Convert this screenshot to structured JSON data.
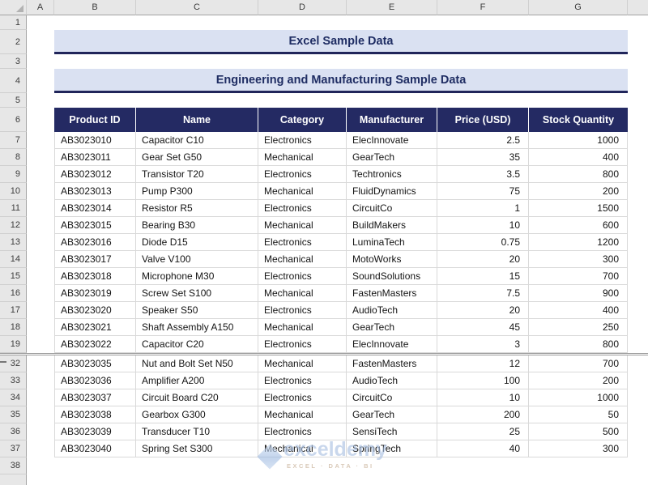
{
  "sheet": {
    "column_letters": [
      "A",
      "B",
      "C",
      "D",
      "E",
      "F",
      "G"
    ],
    "visible_row_numbers": [
      1,
      2,
      3,
      4,
      5,
      6,
      7,
      8,
      9,
      10,
      11,
      12,
      13,
      14,
      15,
      16,
      17,
      18,
      19,
      32,
      33,
      34,
      35,
      36,
      37,
      38
    ]
  },
  "titles": {
    "main": "Excel Sample Data",
    "subtitle": "Engineering and Manufacturing Sample Data"
  },
  "table": {
    "headers": [
      "Product ID",
      "Name",
      "Category",
      "Manufacturer",
      "Price (USD)",
      "Stock Quantity"
    ],
    "rows": [
      {
        "row": 7,
        "product_id": "AB3023010",
        "name": "Capacitor C10",
        "category": "Electronics",
        "manufacturer": "ElecInnovate",
        "price": "2.5",
        "stock": "1000"
      },
      {
        "row": 8,
        "product_id": "AB3023011",
        "name": "Gear Set G50",
        "category": "Mechanical",
        "manufacturer": "GearTech",
        "price": "35",
        "stock": "400"
      },
      {
        "row": 9,
        "product_id": "AB3023012",
        "name": "Transistor T20",
        "category": "Electronics",
        "manufacturer": "Techtronics",
        "price": "3.5",
        "stock": "800"
      },
      {
        "row": 10,
        "product_id": "AB3023013",
        "name": "Pump P300",
        "category": "Mechanical",
        "manufacturer": "FluidDynamics",
        "price": "75",
        "stock": "200"
      },
      {
        "row": 11,
        "product_id": "AB3023014",
        "name": "Resistor R5",
        "category": "Electronics",
        "manufacturer": "CircuitCo",
        "price": "1",
        "stock": "1500"
      },
      {
        "row": 12,
        "product_id": "AB3023015",
        "name": "Bearing B30",
        "category": "Mechanical",
        "manufacturer": "BuildMakers",
        "price": "10",
        "stock": "600"
      },
      {
        "row": 13,
        "product_id": "AB3023016",
        "name": "Diode D15",
        "category": "Electronics",
        "manufacturer": "LuminaTech",
        "price": "0.75",
        "stock": "1200"
      },
      {
        "row": 14,
        "product_id": "AB3023017",
        "name": "Valve V100",
        "category": "Mechanical",
        "manufacturer": "MotoWorks",
        "price": "20",
        "stock": "300"
      },
      {
        "row": 15,
        "product_id": "AB3023018",
        "name": "Microphone M30",
        "category": "Electronics",
        "manufacturer": "SoundSolutions",
        "price": "15",
        "stock": "700"
      },
      {
        "row": 16,
        "product_id": "AB3023019",
        "name": "Screw Set S100",
        "category": "Mechanical",
        "manufacturer": "FastenMasters",
        "price": "7.5",
        "stock": "900"
      },
      {
        "row": 17,
        "product_id": "AB3023020",
        "name": "Speaker S50",
        "category": "Electronics",
        "manufacturer": "AudioTech",
        "price": "20",
        "stock": "400"
      },
      {
        "row": 18,
        "product_id": "AB3023021",
        "name": "Shaft Assembly A150",
        "category": "Mechanical",
        "manufacturer": "GearTech",
        "price": "45",
        "stock": "250"
      },
      {
        "row": 19,
        "product_id": "AB3023022",
        "name": "Capacitor C20",
        "category": "Electronics",
        "manufacturer": "ElecInnovate",
        "price": "3",
        "stock": "800"
      },
      {
        "row": 32,
        "product_id": "AB3023035",
        "name": "Nut and Bolt Set N50",
        "category": "Mechanical",
        "manufacturer": "FastenMasters",
        "price": "12",
        "stock": "700"
      },
      {
        "row": 33,
        "product_id": "AB3023036",
        "name": "Amplifier A200",
        "category": "Electronics",
        "manufacturer": "AudioTech",
        "price": "100",
        "stock": "200"
      },
      {
        "row": 34,
        "product_id": "AB3023037",
        "name": "Circuit Board C20",
        "category": "Electronics",
        "manufacturer": "CircuitCo",
        "price": "10",
        "stock": "1000"
      },
      {
        "row": 35,
        "product_id": "AB3023038",
        "name": "Gearbox G300",
        "category": "Mechanical",
        "manufacturer": "GearTech",
        "price": "200",
        "stock": "50"
      },
      {
        "row": 36,
        "product_id": "AB3023039",
        "name": "Transducer T10",
        "category": "Electronics",
        "manufacturer": "SensiTech",
        "price": "25",
        "stock": "500"
      },
      {
        "row": 37,
        "product_id": "AB3023040",
        "name": "Spring Set S300",
        "category": "Mechanical",
        "manufacturer": "SpringTech",
        "price": "40",
        "stock": "300"
      }
    ]
  },
  "watermark": {
    "brand": "exceldemy",
    "tagline": "EXCEL · DATA · BI"
  },
  "colors": {
    "title_fill": "#dae1f2",
    "navy_text": "#1f2d63",
    "header_fill": "#242a63",
    "chrome_bg": "#e7e7e7",
    "chrome_border": "#cfcfcf",
    "chrome_dark_border": "#a3a3a3",
    "grid_border": "#d9d9d9",
    "watermark_blue": "#a9c0e2",
    "watermark_tan": "#c2a98d"
  }
}
